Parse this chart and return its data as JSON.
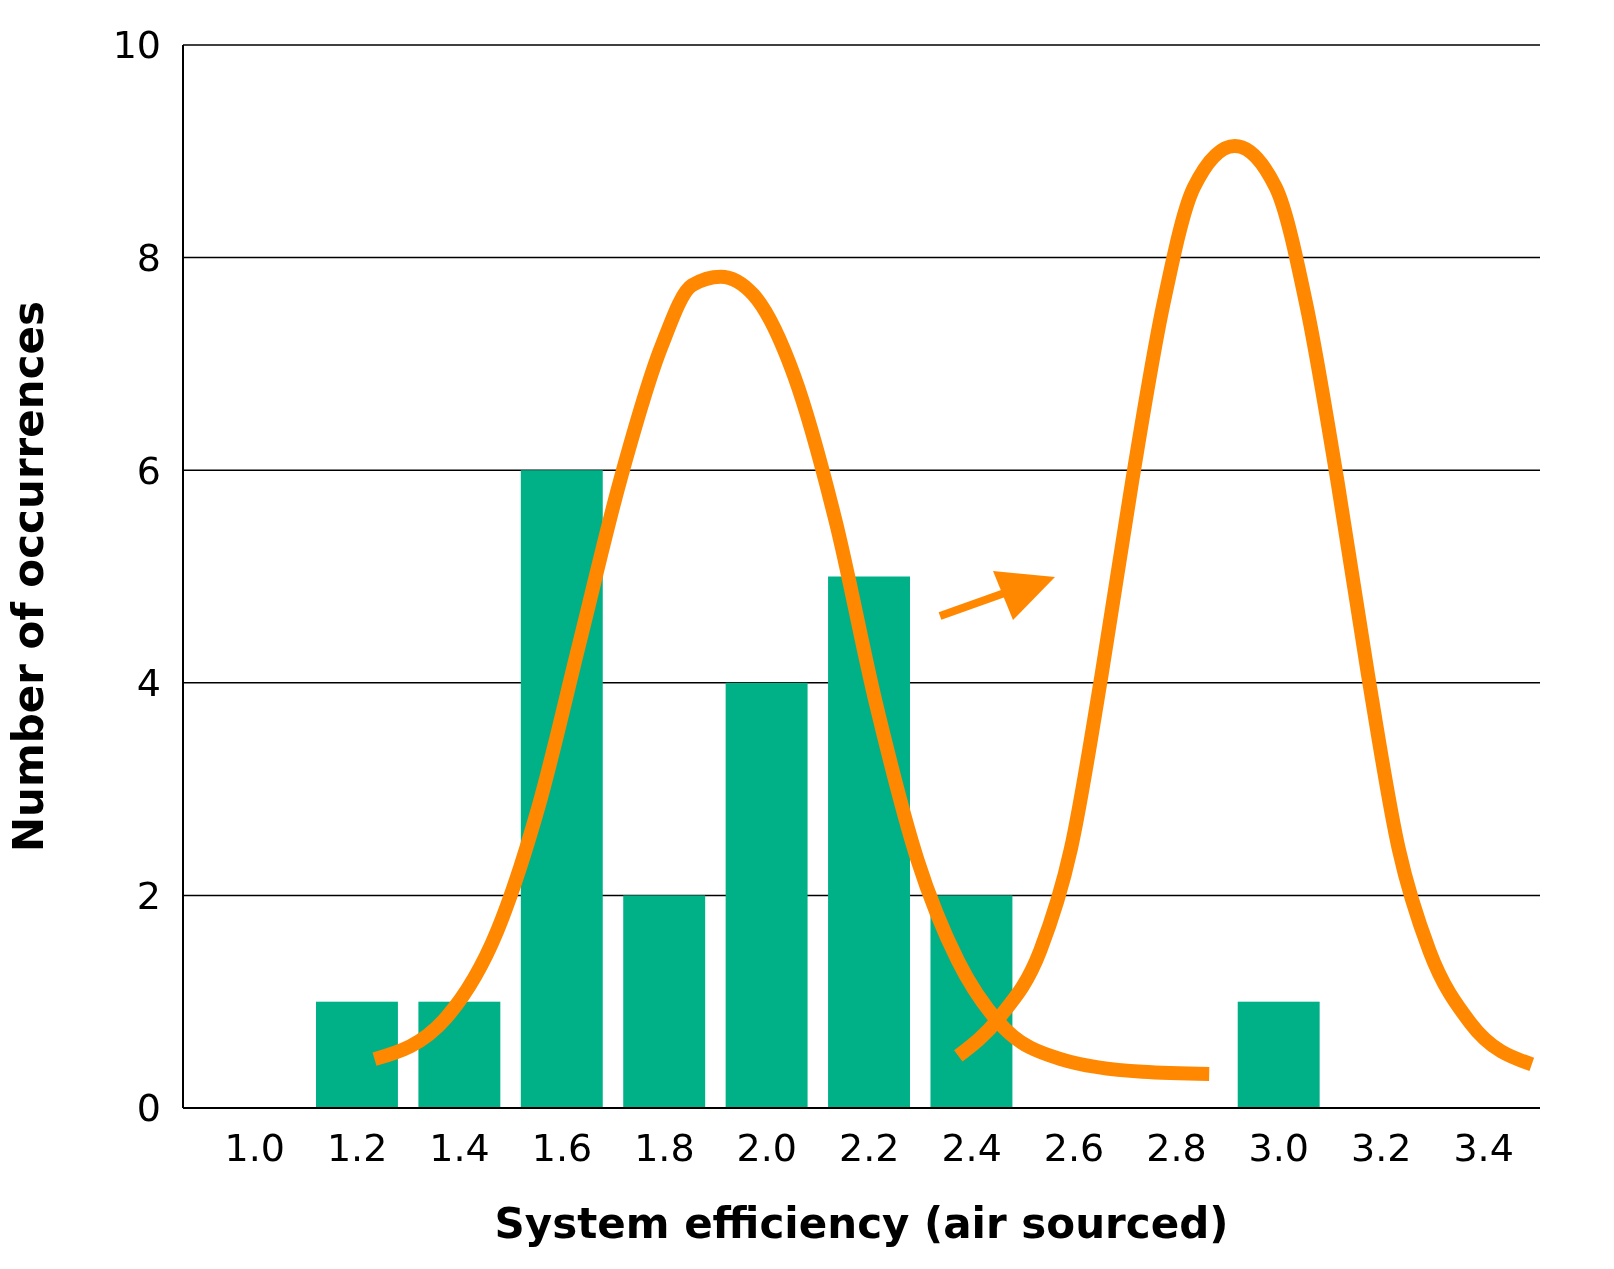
{
  "chart_data": {
    "type": "bar",
    "xlabel": "System efficiency (air sourced)",
    "ylabel": "Number of occurrences",
    "x": [
      1.0,
      1.2,
      1.4,
      1.6,
      1.8,
      2.0,
      2.2,
      2.4,
      2.6,
      2.8,
      3.0,
      3.2,
      3.4
    ],
    "xlim": [
      0.86,
      3.51
    ],
    "xticks": [
      {
        "value": 1.0,
        "label": "1.0"
      },
      {
        "value": 1.2,
        "label": "1.2"
      },
      {
        "value": 1.4,
        "label": "1.4"
      },
      {
        "value": 1.6,
        "label": "1.6"
      },
      {
        "value": 1.8,
        "label": "1.8"
      },
      {
        "value": 2.0,
        "label": "2.0"
      },
      {
        "value": 2.2,
        "label": "2.2"
      },
      {
        "value": 2.4,
        "label": "2.4"
      },
      {
        "value": 2.6,
        "label": "2.6"
      },
      {
        "value": 2.8,
        "label": "2.8"
      },
      {
        "value": 3.0,
        "label": "3.0"
      },
      {
        "value": 3.2,
        "label": "3.2"
      },
      {
        "value": 3.4,
        "label": "3.4"
      }
    ],
    "ylim": [
      0,
      10
    ],
    "yticks": [
      0,
      2,
      4,
      6,
      8,
      10
    ],
    "grid": "y",
    "legend": false,
    "marker": "none",
    "line_style": "solid",
    "series": [
      {
        "color": "#00b187",
        "values": [
          0,
          1,
          1,
          6,
          2,
          4,
          5,
          2,
          0,
          0,
          1,
          0,
          0
        ]
      },
      {
        "type": "line",
        "color": "#ff8800",
        "x": [
          1.234,
          1.374,
          1.474,
          1.554,
          1.634,
          1.714,
          1.794,
          1.854,
          1.91,
          1.974,
          2.054,
          2.134,
          2.214,
          2.294,
          2.374,
          2.454,
          2.574,
          2.734,
          2.864
        ],
        "values": [
          0.46,
          0.85,
          1.67,
          2.83,
          4.37,
          5.91,
          7.16,
          7.74,
          7.82,
          7.65,
          6.88,
          5.53,
          3.79,
          2.34,
          1.38,
          0.8,
          0.46,
          0.34,
          0.32
        ]
      },
      {
        "type": "line",
        "color": "#ff8800",
        "x": [
          2.374,
          2.454,
          2.534,
          2.594,
          2.654,
          2.714,
          2.774,
          2.834,
          2.914,
          2.994,
          3.054,
          3.114,
          3.174,
          3.234,
          3.294,
          3.374,
          3.494
        ],
        "values": [
          0.49,
          0.85,
          1.48,
          2.44,
          4.08,
          5.91,
          7.55,
          8.66,
          9.05,
          8.66,
          7.55,
          5.91,
          4.08,
          2.44,
          1.48,
          0.8,
          0.41
        ]
      }
    ]
  }
}
